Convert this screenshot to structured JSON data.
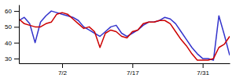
{
  "chart_data": {
    "type": "line",
    "categories": [
      null,
      null,
      null,
      null,
      null,
      null,
      null,
      null,
      "7/2",
      null,
      null,
      null,
      null,
      null,
      null,
      null,
      null,
      null,
      null,
      null,
      null,
      "7/17",
      null,
      null,
      null,
      null,
      null,
      null,
      null,
      null,
      null,
      null,
      null,
      null,
      "7/31",
      null,
      null,
      null,
      null,
      null
    ],
    "series": [
      {
        "color": "#3333cc",
        "values": [
          54,
          56,
          52,
          40,
          53,
          57,
          60,
          59,
          58,
          57,
          56,
          54,
          50,
          48,
          46,
          44,
          47,
          50,
          51,
          46,
          44,
          46,
          48,
          51,
          53,
          53,
          54,
          56,
          55,
          52,
          47,
          42,
          37,
          33,
          30,
          30,
          29,
          57,
          45,
          32
        ]
      },
      {
        "color": "#cc0000",
        "values": [
          55,
          52,
          51,
          50,
          50,
          52,
          53,
          58,
          59,
          58,
          55,
          52,
          49,
          50,
          47,
          37,
          46,
          48,
          47,
          44,
          43,
          47,
          48,
          52,
          53,
          53,
          54,
          54,
          52,
          47,
          42,
          38,
          33,
          29,
          29,
          29,
          30,
          37,
          39,
          44
        ]
      }
    ],
    "ylim": [
      27,
      64
    ],
    "yticks": [
      30,
      40,
      50,
      60
    ]
  }
}
